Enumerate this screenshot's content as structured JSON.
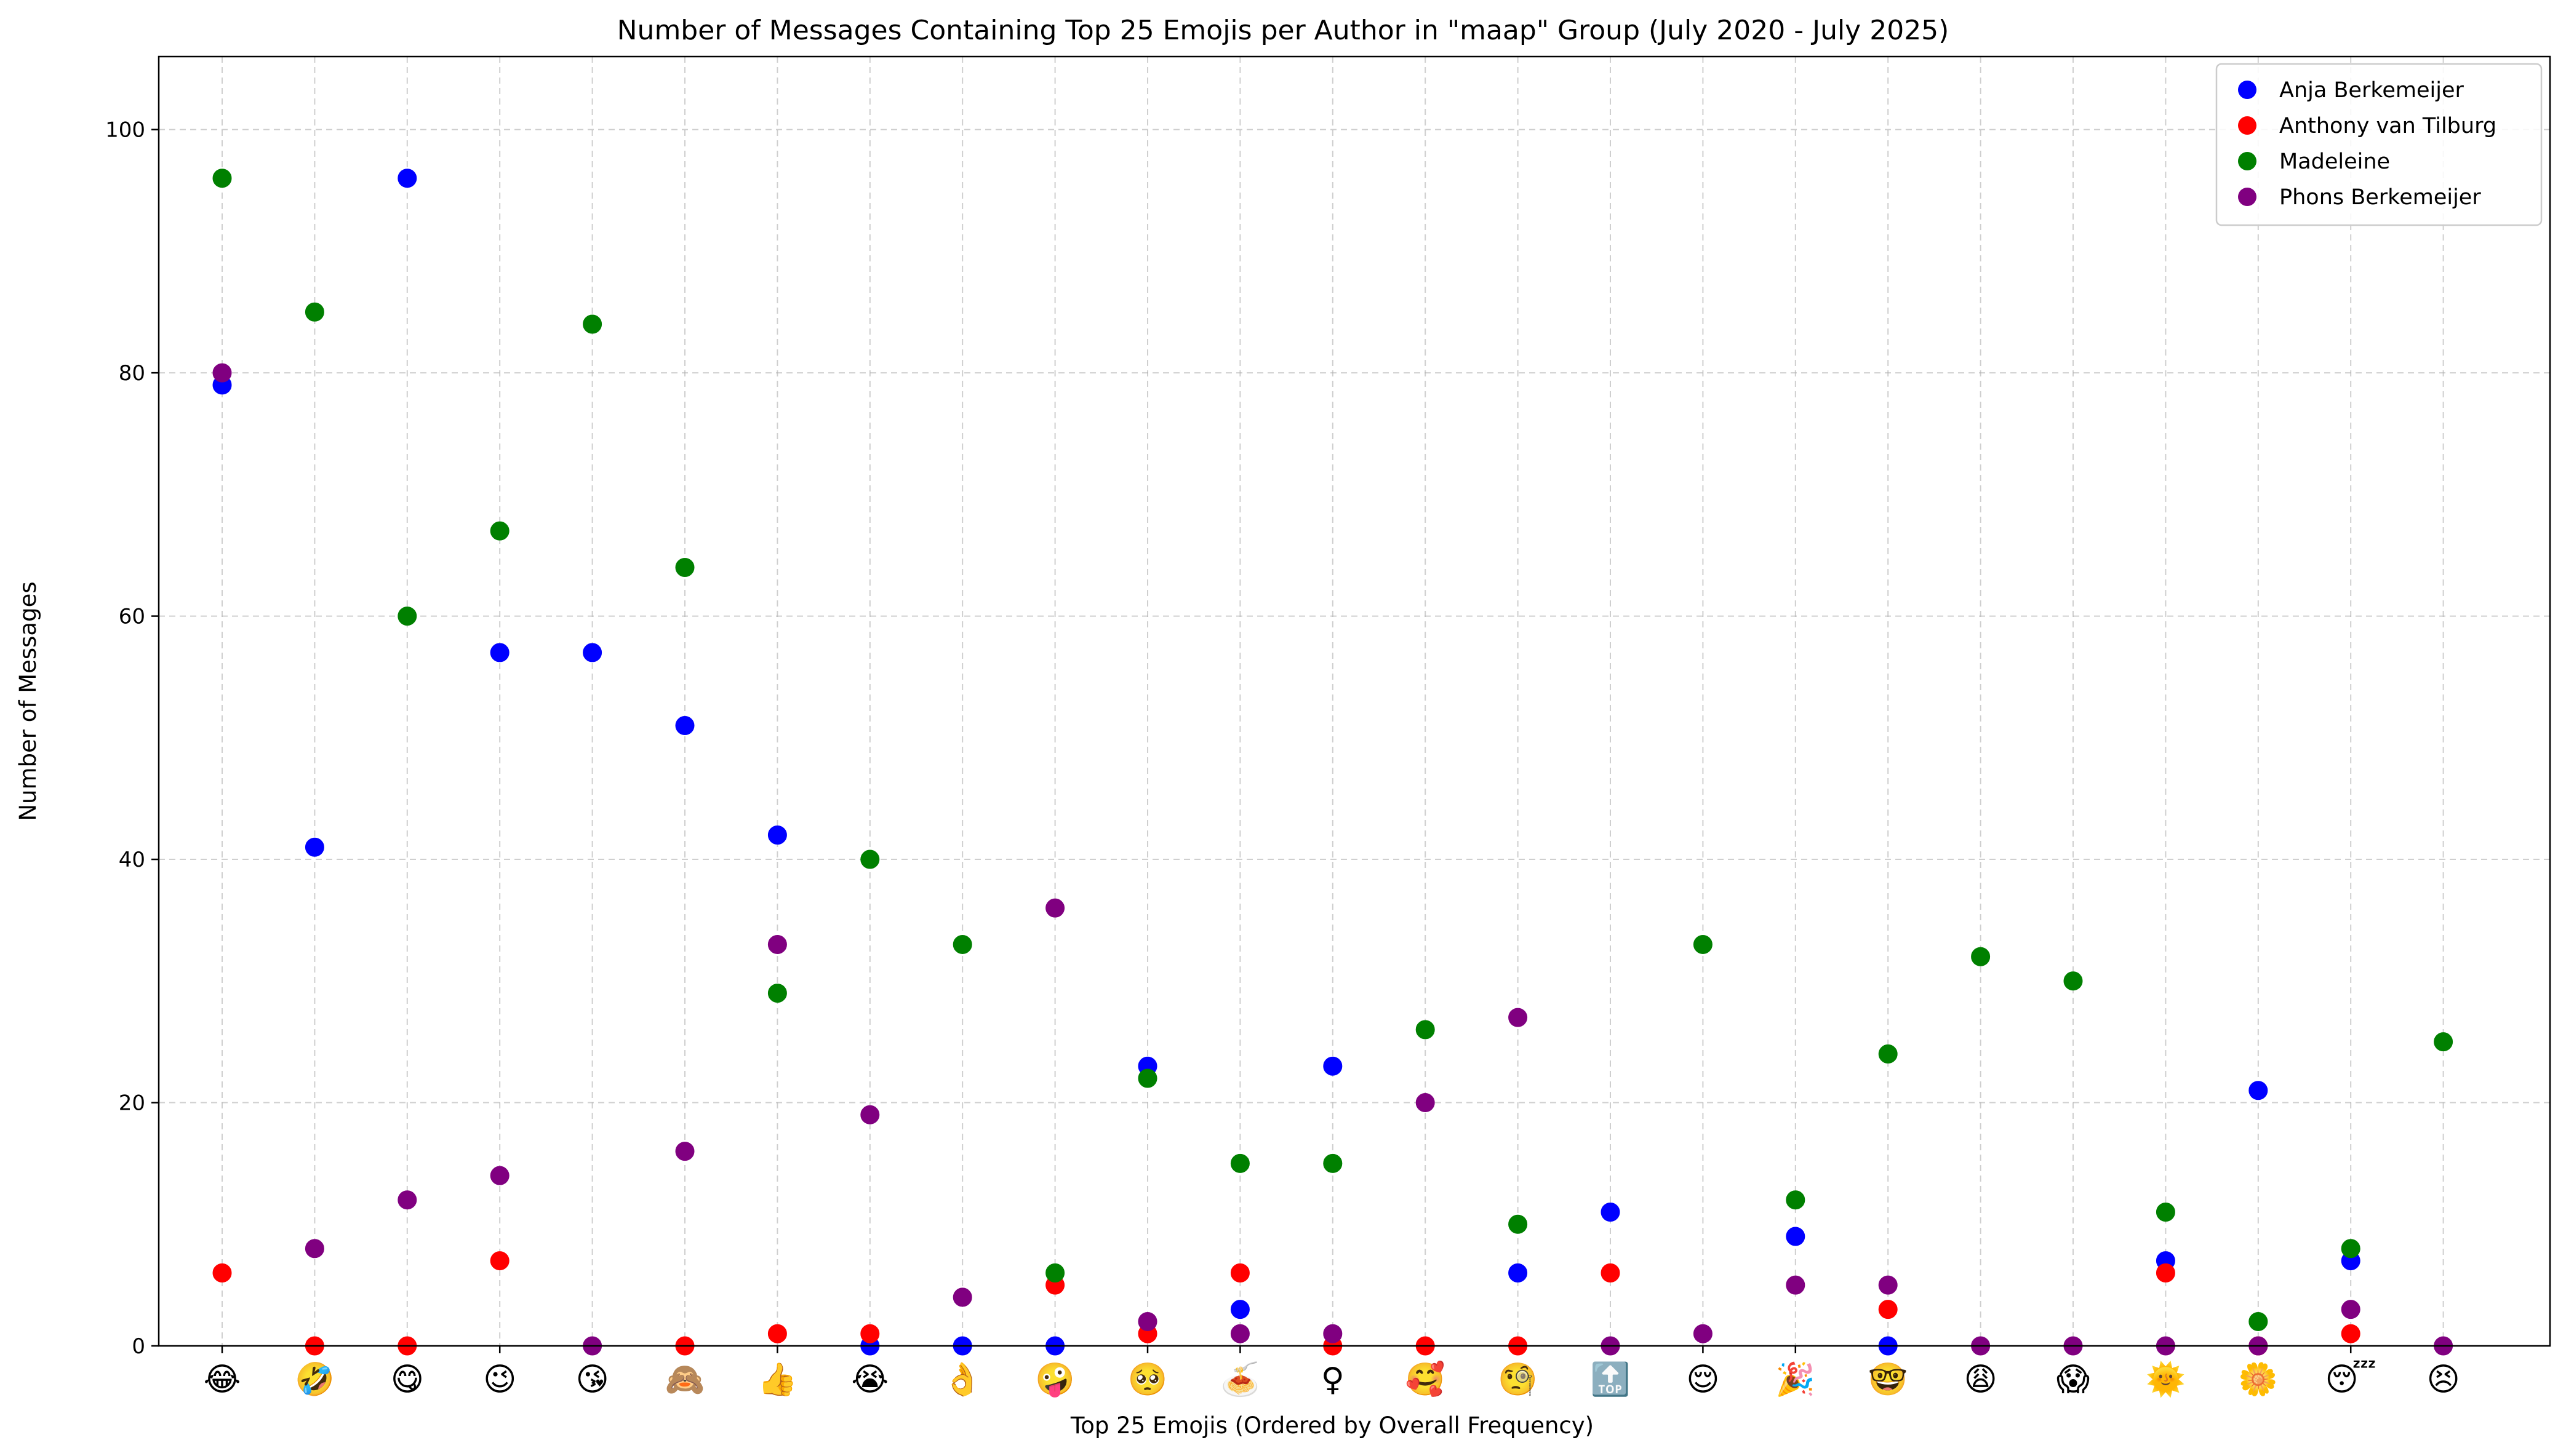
{
  "chart_data": {
    "type": "scatter",
    "title": "Number of Messages Containing Top 25 Emojis per Author in \"maap\" Group (July 2020 - July 2025)",
    "xlabel": "Top 25 Emojis (Ordered by Overall Frequency)",
    "ylabel": "Number of Messages",
    "ylim": [
      0,
      106
    ],
    "yticks": [
      0,
      20,
      40,
      60,
      80,
      100
    ],
    "grid": true,
    "legend_position": "top-right",
    "categories": [
      "😂",
      "🤣",
      "😋",
      "😉",
      "😘",
      "🙈",
      "👍",
      "😭",
      "👌",
      "🤪",
      "🥺",
      "🍝",
      "♀",
      "🥰",
      "🧐",
      "🔝",
      "😌",
      "🎉",
      "🤓",
      "😩",
      "😱",
      "🌞",
      "🌼",
      "😴",
      "😣"
    ],
    "series": [
      {
        "name": "Anja Berkemeijer",
        "color": "#0000ff",
        "values": [
          79,
          41,
          96,
          57,
          57,
          51,
          42,
          0,
          0,
          0,
          23,
          3,
          23,
          null,
          6,
          11,
          null,
          9,
          0,
          null,
          null,
          7,
          21,
          7,
          null
        ]
      },
      {
        "name": "Anthony van Tilburg",
        "color": "#ff0000",
        "values": [
          6,
          0,
          0,
          7,
          null,
          0,
          1,
          1,
          null,
          5,
          1,
          6,
          0,
          0,
          0,
          6,
          null,
          null,
          3,
          null,
          null,
          6,
          0,
          1,
          null
        ]
      },
      {
        "name": "Madeleine",
        "color": "#008000",
        "values": [
          96,
          85,
          60,
          67,
          84,
          64,
          29,
          40,
          33,
          6,
          22,
          15,
          15,
          26,
          10,
          null,
          33,
          12,
          24,
          32,
          30,
          11,
          2,
          8,
          25
        ]
      },
      {
        "name": "Phons Berkemeijer",
        "color": "#800080",
        "values": [
          80,
          8,
          12,
          14,
          0,
          16,
          33,
          19,
          4,
          36,
          2,
          1,
          1,
          20,
          27,
          0,
          1,
          5,
          5,
          0,
          0,
          0,
          0,
          3,
          0
        ]
      }
    ]
  }
}
